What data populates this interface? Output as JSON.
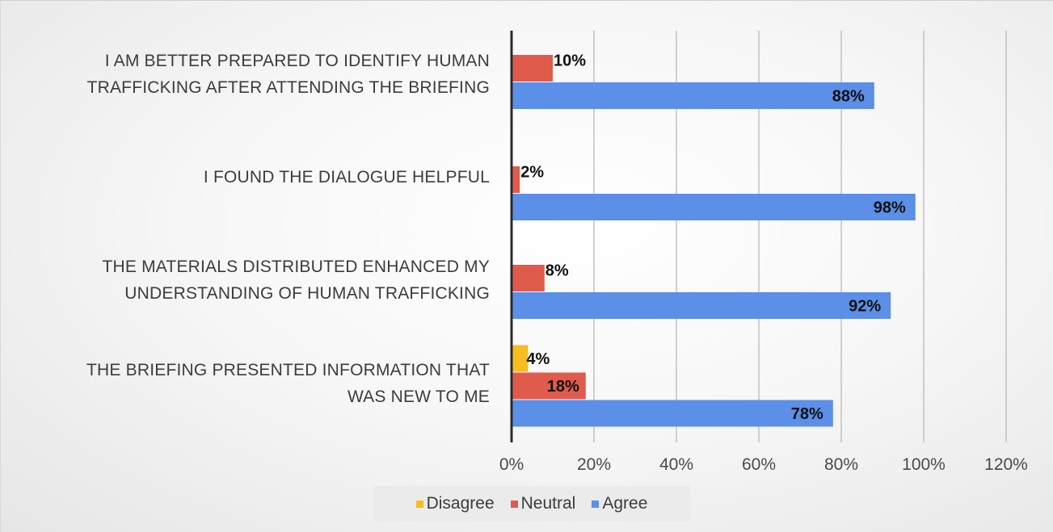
{
  "chart_data": {
    "type": "bar",
    "orientation": "horizontal",
    "categories": [
      [
        "I AM BETTER PREPARED TO IDENTIFY HUMAN",
        "TRAFFICKING AFTER ATTENDING THE BRIEFING"
      ],
      [
        "I FOUND THE DIALOGUE HELPFUL"
      ],
      [
        "THE MATERIALS DISTRIBUTED ENHANCED MY",
        "UNDERSTANDING OF HUMAN TRAFFICKING"
      ],
      [
        "THE BRIEFING PRESENTED INFORMATION THAT",
        "WAS NEW TO ME"
      ]
    ],
    "series": [
      {
        "name": "Disagree",
        "color": "#f5bd1f",
        "values": [
          null,
          null,
          null,
          4
        ],
        "labels": [
          null,
          null,
          null,
          "4%"
        ]
      },
      {
        "name": "Neutral",
        "color": "#e05b4c",
        "values": [
          10,
          2,
          8,
          18
        ],
        "labels": [
          "10%",
          "2%",
          "8%",
          "18%"
        ]
      },
      {
        "name": "Agree",
        "color": "#5b8fe8",
        "values": [
          88,
          98,
          92,
          78
        ],
        "labels": [
          "88%",
          "98%",
          "92%",
          "78%"
        ]
      }
    ],
    "xlim": [
      0,
      120
    ],
    "xticks": [
      "0%",
      "20%",
      "40%",
      "60%",
      "80%",
      "100%",
      "120%"
    ],
    "grid": true,
    "legend_position": "bottom"
  },
  "legend": {
    "disagree": "Disagree",
    "neutral": "Neutral",
    "agree": "Agree"
  },
  "colors": {
    "disagree": "#f5bd1f",
    "neutral": "#e05b4c",
    "agree": "#5b8fe8"
  }
}
